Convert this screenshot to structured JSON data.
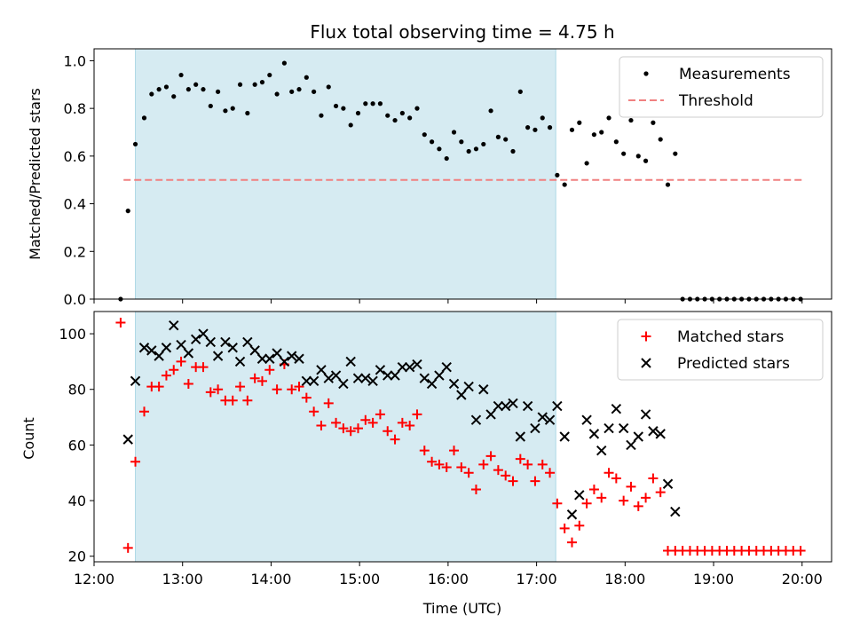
{
  "title": "Flux total observing time = 4.75 h",
  "chart_data": [
    {
      "type": "scatter",
      "panel": "top",
      "ylabel": "Matched/Predicted stars",
      "xlabel": "",
      "xlim": [
        "12:00",
        "20:20"
      ],
      "ylim": [
        0,
        1.05
      ],
      "yticks": [
        0,
        0.2,
        0.4,
        0.6,
        0.8,
        1.0
      ],
      "ytick_labels": [
        "0.0",
        "0.2",
        "0.4",
        "0.6",
        "0.8",
        "1.0"
      ],
      "grid": false,
      "legend": "top-right",
      "observing_window": [
        "12:28",
        "17:13"
      ],
      "threshold": 0.5,
      "threshold_range": [
        "12:20",
        "20:00"
      ],
      "legend_labels": {
        "points": "Measurements",
        "threshold": "Threshold"
      },
      "colors": {
        "points": "#000000",
        "threshold": "#f08080",
        "window": "#add8e6"
      },
      "x": [
        "12:18",
        "12:23",
        "12:28",
        "12:34",
        "12:39",
        "12:44",
        "12:49",
        "12:54",
        "12:59",
        "13:04",
        "13:09",
        "13:14",
        "13:19",
        "13:24",
        "13:29",
        "13:34",
        "13:39",
        "13:44",
        "13:49",
        "13:54",
        "13:59",
        "14:04",
        "14:09",
        "14:14",
        "14:19",
        "14:24",
        "14:29",
        "14:34",
        "14:39",
        "14:44",
        "14:49",
        "14:54",
        "14:59",
        "15:04",
        "15:09",
        "15:14",
        "15:19",
        "15:24",
        "15:29",
        "15:34",
        "15:39",
        "15:44",
        "15:49",
        "15:54",
        "15:59",
        "16:04",
        "16:09",
        "16:14",
        "16:19",
        "16:24",
        "16:29",
        "16:34",
        "16:39",
        "16:44",
        "16:49",
        "16:54",
        "16:59",
        "17:04",
        "17:09",
        "17:14",
        "17:19",
        "17:24",
        "17:29",
        "17:34",
        "17:39",
        "17:44",
        "17:49",
        "17:54",
        "17:59",
        "18:04",
        "18:09",
        "18:14",
        "18:19",
        "18:24",
        "18:29",
        "18:34",
        "18:39",
        "18:44",
        "18:49",
        "18:54",
        "18:59",
        "19:04",
        "19:09",
        "19:14",
        "19:19",
        "19:24",
        "19:29",
        "19:34",
        "19:39",
        "19:44",
        "19:49",
        "19:54",
        "19:59"
      ],
      "y": [
        0.0,
        0.37,
        0.65,
        0.76,
        0.86,
        0.88,
        0.89,
        0.85,
        0.94,
        0.88,
        0.9,
        0.88,
        0.81,
        0.87,
        0.79,
        0.8,
        0.9,
        0.78,
        0.9,
        0.91,
        0.94,
        0.86,
        0.99,
        0.87,
        0.88,
        0.93,
        0.87,
        0.77,
        0.89,
        0.81,
        0.8,
        0.73,
        0.78,
        0.82,
        0.82,
        0.82,
        0.77,
        0.75,
        0.78,
        0.76,
        0.8,
        0.69,
        0.66,
        0.63,
        0.59,
        0.7,
        0.66,
        0.62,
        0.63,
        0.65,
        0.79,
        0.68,
        0.67,
        0.62,
        0.87,
        0.72,
        0.71,
        0.76,
        0.72,
        0.52,
        0.48,
        0.71,
        0.74,
        0.57,
        0.69,
        0.7,
        0.76,
        0.66,
        0.61,
        0.75,
        0.6,
        0.58,
        0.74,
        0.67,
        0.48,
        0.61,
        0.0,
        0.0,
        0.0,
        0.0,
        0.0,
        0.0,
        0.0,
        0.0,
        0.0,
        0.0,
        0.0,
        0.0,
        0.0,
        0.0,
        0.0,
        0.0,
        0.0
      ]
    },
    {
      "type": "scatter",
      "panel": "bottom",
      "ylabel": "Count",
      "xlabel": "Time (UTC)",
      "xlim": [
        "12:00",
        "20:20"
      ],
      "ylim": [
        18,
        108
      ],
      "yticks": [
        20,
        40,
        60,
        80,
        100
      ],
      "ytick_labels": [
        "20",
        "40",
        "60",
        "80",
        "100"
      ],
      "xticks": [
        "12:00",
        "13:00",
        "14:00",
        "15:00",
        "16:00",
        "17:00",
        "18:00",
        "19:00",
        "20:00"
      ],
      "grid": false,
      "legend": "top-right",
      "observing_window": [
        "12:28",
        "17:13"
      ],
      "colors": {
        "matched": "#ff0000",
        "predicted": "#000000",
        "window": "#add8e6"
      },
      "series": [
        {
          "name": "Matched stars",
          "marker": "+",
          "x": [
            "12:18",
            "12:23",
            "12:28",
            "12:34",
            "12:39",
            "12:44",
            "12:49",
            "12:54",
            "12:59",
            "13:04",
            "13:09",
            "13:14",
            "13:19",
            "13:24",
            "13:29",
            "13:34",
            "13:39",
            "13:44",
            "13:49",
            "13:54",
            "13:59",
            "14:04",
            "14:09",
            "14:14",
            "14:19",
            "14:24",
            "14:29",
            "14:34",
            "14:39",
            "14:44",
            "14:49",
            "14:54",
            "14:59",
            "15:04",
            "15:09",
            "15:14",
            "15:19",
            "15:24",
            "15:29",
            "15:34",
            "15:39",
            "15:44",
            "15:49",
            "15:54",
            "15:59",
            "16:04",
            "16:09",
            "16:14",
            "16:19",
            "16:24",
            "16:29",
            "16:34",
            "16:39",
            "16:44",
            "16:49",
            "16:54",
            "16:59",
            "17:04",
            "17:09",
            "17:14",
            "17:19",
            "17:24",
            "17:29",
            "17:34",
            "17:39",
            "17:44",
            "17:49",
            "17:54",
            "17:59",
            "18:04",
            "18:09",
            "18:14",
            "18:19",
            "18:24",
            "18:29",
            "18:34",
            "18:39",
            "18:44",
            "18:49",
            "18:54",
            "18:59",
            "19:04",
            "19:09",
            "19:14",
            "19:19",
            "19:24",
            "19:29",
            "19:34",
            "19:39",
            "19:44",
            "19:49",
            "19:54",
            "19:59"
          ],
          "values": [
            104,
            23,
            54,
            72,
            81,
            81,
            85,
            87,
            90,
            82,
            88,
            88,
            79,
            80,
            76,
            76,
            81,
            76,
            84,
            83,
            87,
            80,
            89,
            80,
            81,
            77,
            72,
            67,
            75,
            68,
            66,
            65,
            66,
            69,
            68,
            71,
            65,
            62,
            68,
            67,
            71,
            58,
            54,
            53,
            52,
            58,
            52,
            50,
            44,
            53,
            56,
            51,
            49,
            47,
            55,
            53,
            47,
            53,
            50,
            39,
            30,
            25,
            31,
            39,
            44,
            41,
            50,
            48,
            40,
            45,
            38,
            41,
            48,
            43,
            22,
            22,
            22,
            22,
            22,
            22,
            22,
            22,
            22,
            22,
            22,
            22,
            22,
            22,
            22,
            22,
            22,
            22,
            22
          ]
        },
        {
          "name": "Predicted stars",
          "marker": "x",
          "x": [
            "12:23",
            "12:28",
            "12:34",
            "12:39",
            "12:44",
            "12:49",
            "12:54",
            "12:59",
            "13:04",
            "13:09",
            "13:14",
            "13:19",
            "13:24",
            "13:29",
            "13:34",
            "13:39",
            "13:44",
            "13:49",
            "13:54",
            "13:59",
            "14:04",
            "14:09",
            "14:14",
            "14:19",
            "14:24",
            "14:29",
            "14:34",
            "14:39",
            "14:44",
            "14:49",
            "14:54",
            "14:59",
            "15:04",
            "15:09",
            "15:14",
            "15:19",
            "15:24",
            "15:29",
            "15:34",
            "15:39",
            "15:44",
            "15:49",
            "15:54",
            "15:59",
            "16:04",
            "16:09",
            "16:14",
            "16:19",
            "16:24",
            "16:29",
            "16:34",
            "16:39",
            "16:44",
            "16:49",
            "16:54",
            "16:59",
            "17:04",
            "17:09",
            "17:14",
            "17:19",
            "17:24",
            "17:29",
            "17:34",
            "17:39",
            "17:44",
            "17:49",
            "17:54",
            "17:59",
            "18:04",
            "18:09",
            "18:14",
            "18:19",
            "18:24",
            "18:29",
            "18:34"
          ],
          "values": [
            62,
            83,
            95,
            94,
            92,
            95,
            103,
            96,
            93,
            98,
            100,
            97,
            92,
            97,
            95,
            90,
            97,
            94,
            91,
            91,
            93,
            90,
            92,
            91,
            83,
            83,
            87,
            84,
            85,
            82,
            90,
            84,
            84,
            83,
            87,
            85,
            85,
            88,
            88,
            89,
            84,
            82,
            85,
            88,
            82,
            78,
            81,
            69,
            80,
            71,
            74,
            74,
            75,
            63,
            74,
            66,
            70,
            69,
            74,
            63,
            35,
            42,
            69,
            64,
            58,
            66,
            73,
            66,
            60,
            63,
            71,
            65,
            64,
            46,
            36
          ]
        }
      ]
    }
  ]
}
